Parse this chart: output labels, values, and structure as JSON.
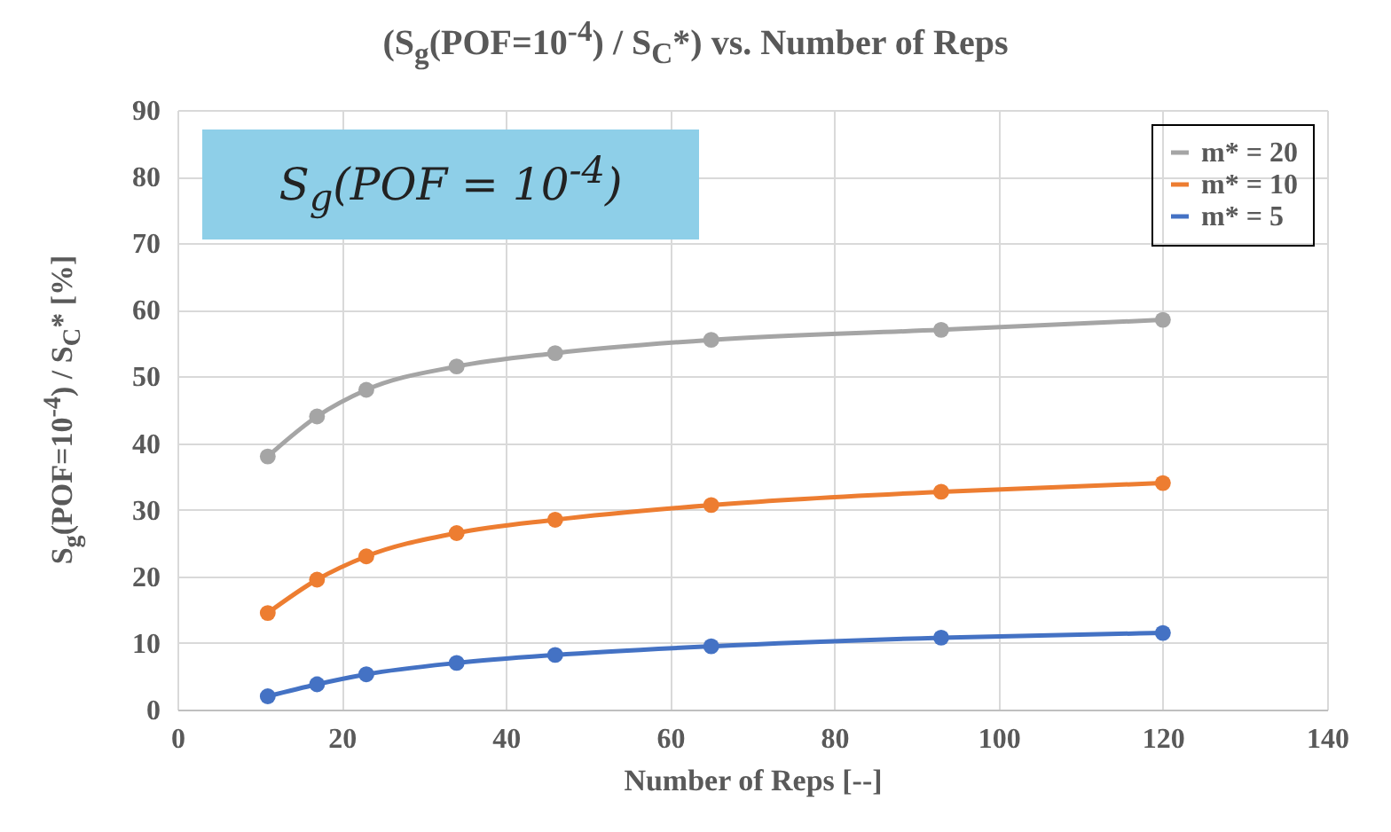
{
  "chart_data": {
    "type": "line",
    "title": "(S$_{g}$(POF=10$^{-4}$) / S$_{C}$*) vs. Number  of Reps",
    "xlabel": "Number of Reps [--]",
    "ylabel": "S$_{g}$(POF=10$^{-4}$) / S$_{C}$*  [%]",
    "annotations": [
      "S$_{g}$(POF = 10$^{-4}$)"
    ],
    "x": [
      11,
      17,
      23,
      34,
      46,
      65,
      93,
      120
    ],
    "series": [
      {
        "name": "m* = 20",
        "color": "#a5a5a5",
        "values": [
          38,
          44,
          48,
          51.5,
          53.5,
          55.5,
          57,
          58.5
        ]
      },
      {
        "name": "m* = 10",
        "color": "#ed7d31",
        "values": [
          14.5,
          19.5,
          23,
          26.5,
          28.5,
          30.7,
          32.7,
          34
        ]
      },
      {
        "name": "m* = 5",
        "color": "#4472c4",
        "values": [
          2,
          3.8,
          5.3,
          7,
          8.2,
          9.5,
          10.8,
          11.5
        ]
      }
    ],
    "xlim": [
      0,
      140
    ],
    "xticks": [
      0,
      20,
      40,
      60,
      80,
      100,
      120,
      140
    ],
    "ylim": [
      0,
      90
    ],
    "yticks": [
      0,
      10,
      20,
      30,
      40,
      50,
      60,
      70,
      80,
      90
    ],
    "grid": true,
    "legend": "top right",
    "marker": "circle",
    "line_style": "solid"
  }
}
